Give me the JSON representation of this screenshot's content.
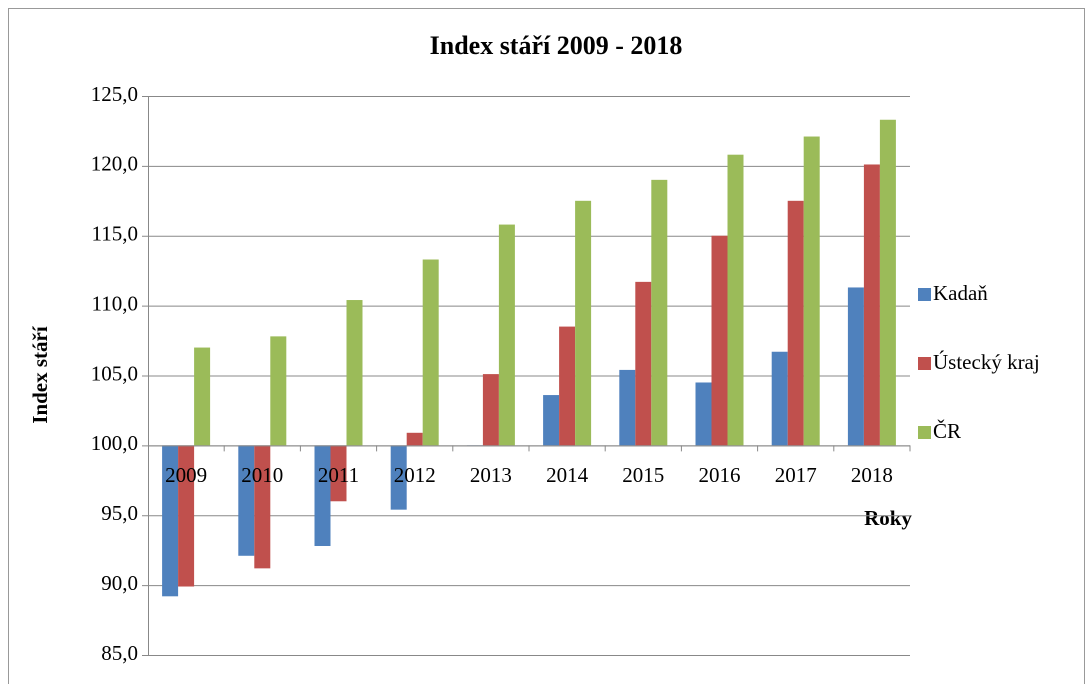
{
  "chart_data": {
    "type": "bar",
    "title": "Index stáří 2009 - 2018",
    "x_label": "Roky",
    "y_label": "Index stáří",
    "categories": [
      "2009",
      "2010",
      "2011",
      "2012",
      "2013",
      "2014",
      "2015",
      "2016",
      "2017",
      "2018"
    ],
    "series": [
      {
        "name": "Kadaň",
        "color": "#4f81bd",
        "values": [
          89.2,
          92.1,
          92.8,
          95.4,
          100.0,
          103.6,
          105.4,
          104.5,
          106.7,
          111.3
        ]
      },
      {
        "name": "Ústecký kraj",
        "color": "#c0504d",
        "values": [
          89.9,
          91.2,
          96.0,
          100.9,
          105.1,
          108.5,
          111.7,
          115.0,
          117.5,
          120.1
        ]
      },
      {
        "name": "ČR",
        "color": "#9bbb59",
        "values": [
          107.0,
          107.8,
          110.4,
          113.3,
          115.8,
          117.5,
          119.0,
          120.8,
          122.1,
          123.3
        ]
      }
    ],
    "ylim": [
      85,
      125
    ],
    "yticks": [
      {
        "value": 85,
        "label": "85,0"
      },
      {
        "value": 90,
        "label": "90,0"
      },
      {
        "value": 95,
        "label": "95,0"
      },
      {
        "value": 100,
        "label": "100,0"
      },
      {
        "value": 105,
        "label": "105,0"
      },
      {
        "value": 110,
        "label": "110,0"
      },
      {
        "value": 115,
        "label": "115,0"
      },
      {
        "value": 120,
        "label": "120,0"
      },
      {
        "value": 125,
        "label": "125,0"
      }
    ],
    "x_axis_at": 100,
    "grid": true,
    "legend": "right"
  }
}
